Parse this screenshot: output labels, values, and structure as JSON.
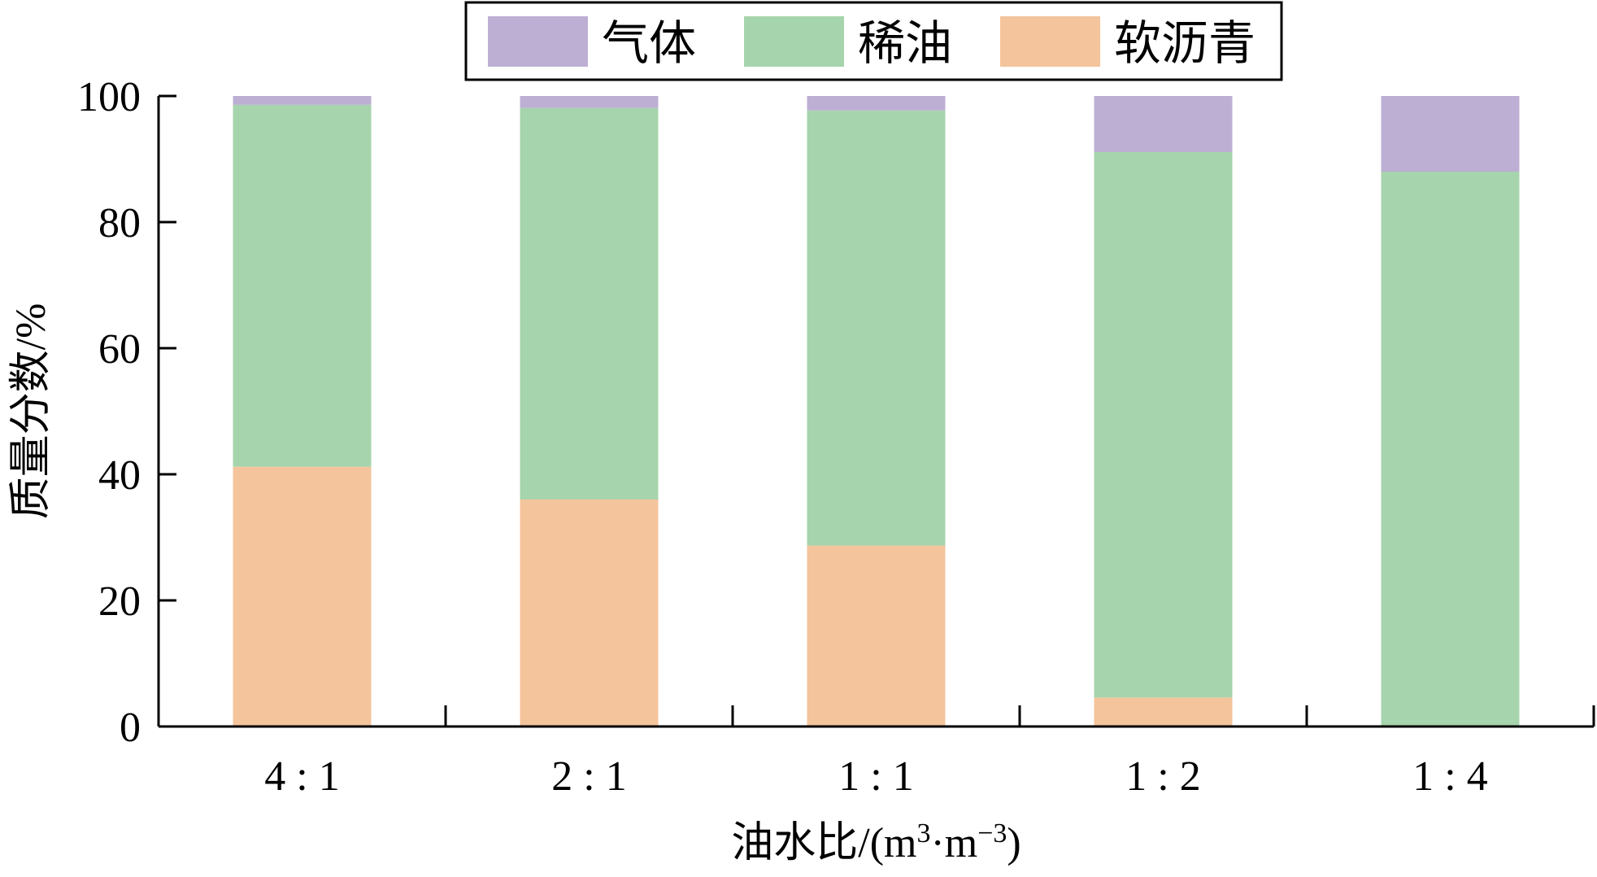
{
  "colors": {
    "gas": "#bcafd3",
    "light_oil": "#a6d4ac",
    "soft_asphalt": "#f4c49c"
  },
  "chart_data": {
    "type": "bar",
    "stacked": true,
    "categories": [
      "4 : 1",
      "2 : 1",
      "1 : 1",
      "1 : 2",
      "1 : 4"
    ],
    "series": [
      {
        "name": "软沥青",
        "color": "#f4c49c",
        "values": [
          41.2,
          36.0,
          28.7,
          4.6,
          0.0
        ]
      },
      {
        "name": "稀油",
        "color": "#a6d4ac",
        "values": [
          57.4,
          62.1,
          69.0,
          86.5,
          88.0
        ]
      },
      {
        "name": "气体",
        "color": "#bcafd3",
        "values": [
          1.4,
          1.9,
          2.3,
          8.9,
          12.0
        ]
      }
    ],
    "legend_order": [
      "气体",
      "稀油",
      "软沥青"
    ],
    "legend_position": "top-center",
    "title": "",
    "ylabel": "质量分数/%",
    "xlabel_parts": {
      "main": "油水比/(m",
      "sup1": "3",
      "mid": "·m",
      "sup2": "−3",
      "end": ")"
    },
    "ylim": [
      0,
      100
    ],
    "yticks": [
      0,
      20,
      40,
      60,
      80,
      100
    ],
    "grid": false
  }
}
